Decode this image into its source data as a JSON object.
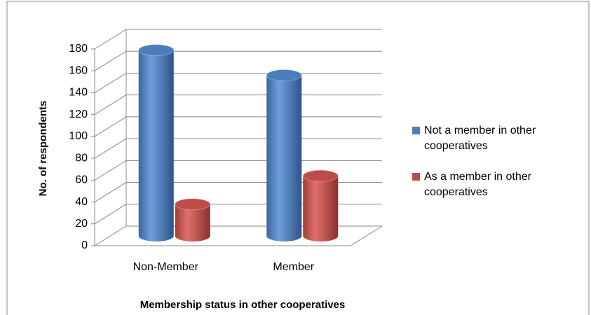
{
  "chart_data": {
    "type": "bar",
    "x_label": "Membership status in other cooperatives",
    "y_label": "No. of respondents",
    "categories": [
      "Non-Member",
      "Member"
    ],
    "series": [
      {
        "name": "Not a member in other cooperatives",
        "color": "#4a7ebb",
        "values": [
          170,
          147
        ]
      },
      {
        "name": "As a member in other cooperatives",
        "color": "#be4b48",
        "values": [
          29,
          55
        ]
      }
    ],
    "ylim": [
      0,
      180
    ],
    "yticks": [
      0,
      20,
      40,
      60,
      80,
      100,
      120,
      140,
      160,
      180
    ],
    "grid": true,
    "legend": "right"
  }
}
